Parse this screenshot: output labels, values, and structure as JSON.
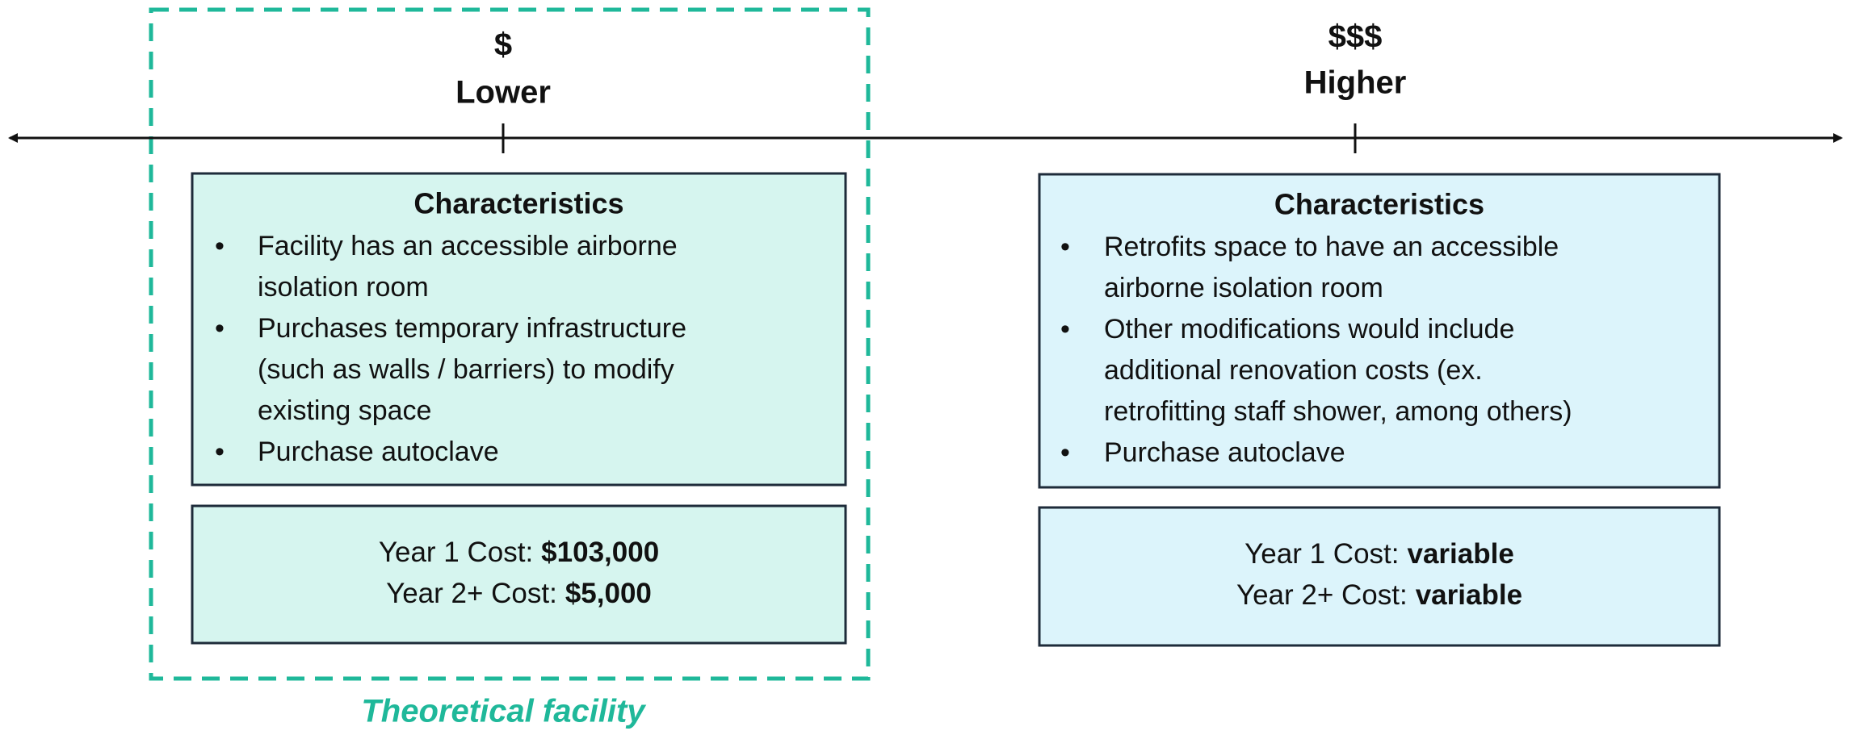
{
  "columns": [
    {
      "symbol": "$",
      "label": "Lower",
      "heading": "Characteristics",
      "bullets": [
        [
          "Facility has an accessible airborne",
          "isolation room"
        ],
        [
          "Purchases temporary infrastructure",
          "(such as walls / barriers) to modify",
          "existing space"
        ],
        [
          "Purchase autoclave"
        ]
      ],
      "costs": [
        {
          "label": "Year 1 Cost:",
          "value": "$103,000"
        },
        {
          "label": "Year 2+ Cost:",
          "value": "$5,000"
        }
      ]
    },
    {
      "symbol": "$$$",
      "label": "Higher",
      "heading": "Characteristics",
      "bullets": [
        [
          "Retrofits space to have an accessible",
          "airborne isolation room"
        ],
        [
          "Other modifications  would include",
          "additional renovation costs (ex.",
          "retrofitting staff shower, among others)"
        ],
        [
          "Purchase autoclave"
        ]
      ],
      "costs": [
        {
          "label": "Year 1 Cost:",
          "value": "variable"
        },
        {
          "label": "Year 2+ Cost:",
          "value": "variable"
        }
      ]
    }
  ],
  "bullet_symbol": "•",
  "annotation": "Theoretical facility"
}
